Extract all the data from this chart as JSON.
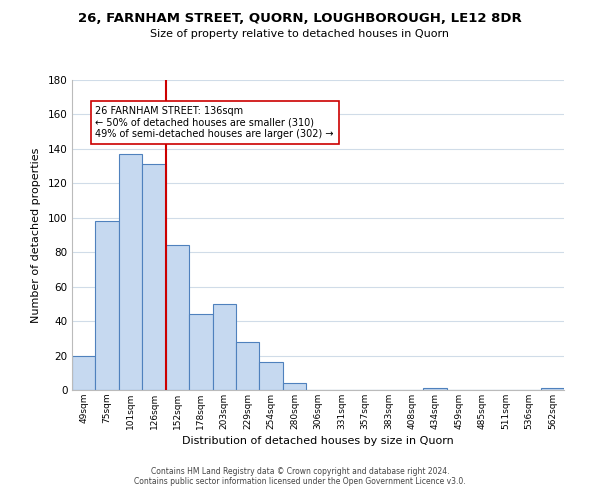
{
  "title": "26, FARNHAM STREET, QUORN, LOUGHBOROUGH, LE12 8DR",
  "subtitle": "Size of property relative to detached houses in Quorn",
  "xlabel": "Distribution of detached houses by size in Quorn",
  "ylabel": "Number of detached properties",
  "bar_labels": [
    "49sqm",
    "75sqm",
    "101sqm",
    "126sqm",
    "152sqm",
    "178sqm",
    "203sqm",
    "229sqm",
    "254sqm",
    "280sqm",
    "306sqm",
    "331sqm",
    "357sqm",
    "383sqm",
    "408sqm",
    "434sqm",
    "459sqm",
    "485sqm",
    "511sqm",
    "536sqm",
    "562sqm"
  ],
  "bar_values": [
    20,
    98,
    137,
    131,
    84,
    44,
    50,
    28,
    16,
    4,
    0,
    0,
    0,
    0,
    0,
    1,
    0,
    0,
    0,
    0,
    1
  ],
  "bar_color": "#c6d9f0",
  "bar_edge_color": "#4f81bd",
  "vline_x_index": 3,
  "vline_color": "#cc0000",
  "annotation_title": "26 FARNHAM STREET: 136sqm",
  "annotation_line1": "← 50% of detached houses are smaller (310)",
  "annotation_line2": "49% of semi-detached houses are larger (302) →",
  "annotation_box_edgecolor": "#cc0000",
  "ylim": [
    0,
    180
  ],
  "yticks": [
    0,
    20,
    40,
    60,
    80,
    100,
    120,
    140,
    160,
    180
  ],
  "footer_line1": "Contains HM Land Registry data © Crown copyright and database right 2024.",
  "footer_line2": "Contains public sector information licensed under the Open Government Licence v3.0.",
  "background_color": "#ffffff",
  "grid_color": "#d0dce8"
}
